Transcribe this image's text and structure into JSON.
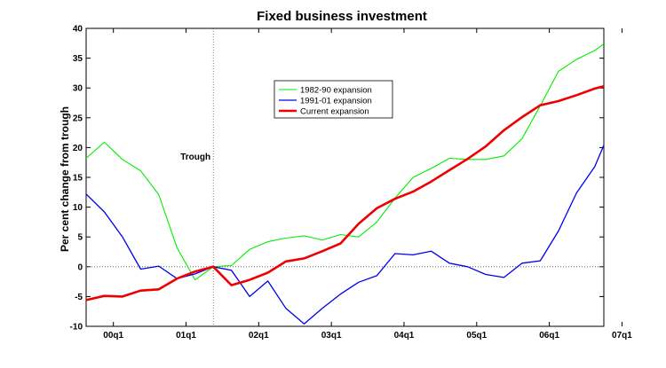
{
  "chart_data": {
    "type": "line",
    "title": "Fixed business investment",
    "ylabel": "Per cent change from trough",
    "xlabel": "",
    "ylim": [
      -10,
      40
    ],
    "yticks": [
      -10,
      -5,
      0,
      5,
      10,
      15,
      20,
      25,
      30,
      35,
      40
    ],
    "xlim": [
      -1.5,
      27
    ],
    "xticks": [
      {
        "label": "00q1",
        "x": 0
      },
      {
        "label": "01q1",
        "x": 4
      },
      {
        "label": "02q1",
        "x": 8
      },
      {
        "label": "03q1",
        "x": 12
      },
      {
        "label": "04q1",
        "x": 16
      },
      {
        "label": "05q1",
        "x": 20
      },
      {
        "label": "06q1",
        "x": 24
      },
      {
        "label": "07q1",
        "x": 28
      }
    ],
    "trough_x": 5.5,
    "annotation": "Trough",
    "reference_line_y": 0,
    "legend_position": "upper-center",
    "series": [
      {
        "name": "1982-90 expansion",
        "color": "#00ee00",
        "width": 1.1,
        "x": [
          -1.5,
          -0.5,
          0.5,
          1.5,
          2.5,
          3.5,
          4.5,
          5.5,
          6.5,
          7.5,
          8.5,
          9.5,
          10.5,
          11.5,
          12.5,
          13.5,
          14.5,
          15.5,
          16.5,
          17.5,
          18.5,
          19.5,
          20.5,
          21.5,
          22.5,
          23.5,
          24.5,
          25.5,
          26.5,
          27
        ],
        "values": [
          18.2,
          20.9,
          18.0,
          16.1,
          12.1,
          3.2,
          -2.2,
          0.0,
          0.2,
          2.9,
          4.2,
          4.8,
          5.2,
          4.5,
          5.4,
          5.0,
          7.5,
          11.5,
          15.0,
          16.5,
          18.2,
          18.0,
          18.0,
          18.6,
          21.5,
          27.0,
          32.8,
          34.8,
          36.3,
          37.4
        ]
      },
      {
        "name": "1991-01 expansion",
        "color": "#0000ee",
        "width": 1.3,
        "x": [
          -1.5,
          -0.5,
          0.5,
          1.5,
          2.5,
          3.5,
          4.5,
          5.5,
          6.5,
          7.5,
          8.5,
          9.5,
          10.5,
          11.5,
          12.5,
          13.5,
          14.5,
          15.5,
          16.5,
          17.5,
          18.5,
          19.5,
          20.5,
          21.5,
          22.5,
          23.5,
          24.5,
          25.5,
          26.5,
          27
        ],
        "values": [
          12.2,
          9.2,
          5.0,
          -0.4,
          0.1,
          -2.0,
          -1.2,
          0.0,
          -0.6,
          -5.0,
          -2.4,
          -7.0,
          -9.6,
          -7.0,
          -4.6,
          -2.6,
          -1.5,
          2.2,
          2.0,
          2.6,
          0.6,
          0.0,
          -1.3,
          -1.8,
          0.6,
          1.0,
          6.0,
          12.4,
          16.8,
          20.4
        ]
      },
      {
        "name": "Current expansion",
        "color": "#ee0000",
        "width": 2.6,
        "x": [
          -1.5,
          -0.5,
          0.5,
          1.5,
          2.5,
          3.5,
          4.5,
          5.5,
          6.5,
          7.5,
          8.5,
          9.5,
          10.5,
          11.5,
          12.5,
          13.5,
          14.5,
          15.5,
          16.5,
          17.5,
          18.5,
          19.5,
          20.5,
          21.5,
          22.5,
          23.5,
          24.5,
          25.5,
          26.5,
          27
        ],
        "values": [
          -5.6,
          -4.9,
          -5.0,
          -4.0,
          -3.8,
          -2.0,
          -0.8,
          0.0,
          -3.1,
          -2.2,
          -1.0,
          0.9,
          1.4,
          2.6,
          3.9,
          7.2,
          9.8,
          11.4,
          12.6,
          14.3,
          16.2,
          18.1,
          20.2,
          22.9,
          25.1,
          27.1,
          27.8,
          28.8,
          29.9,
          30.3
        ]
      }
    ]
  }
}
